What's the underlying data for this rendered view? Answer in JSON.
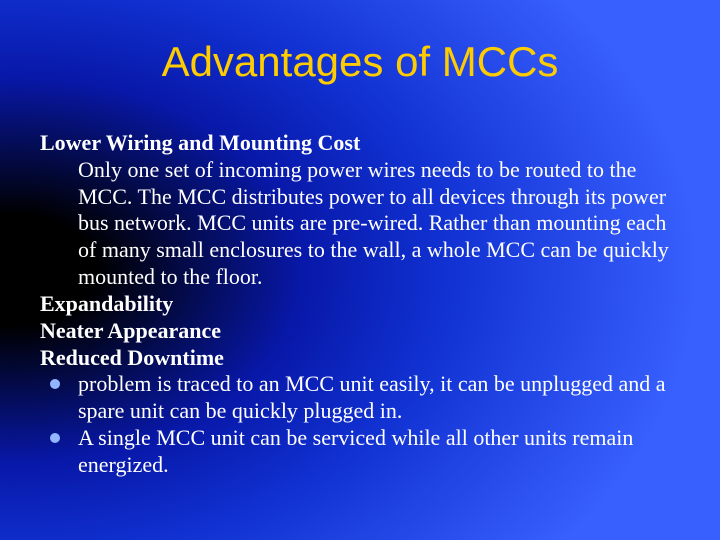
{
  "slide": {
    "background": {
      "gradient_center": "#000000",
      "gradient_mid": "#0818a8",
      "gradient_outer": "#3860ff"
    },
    "title": {
      "text": "Advantages of  MCCs",
      "color": "#ffcc00",
      "font_family": "Arial",
      "font_size_pt": 32
    },
    "body_font": {
      "family": "Times New Roman",
      "size_pt": 17,
      "color": "#ffffff"
    },
    "bullet_color": "#93b4ff",
    "sections": {
      "s1_head": "Lower Wiring and Mounting Cost",
      "s1_body": "Only one set of incoming power wires needs to be routed to the MCC. The MCC distributes power to all devices through its power bus network. MCC units are pre-wired. Rather than mounting each of many small enclosures to the wall, a whole MCC can be quickly mounted to the floor.",
      "s2_head": "Expandability",
      "s3_head": "Neater Appearance",
      "s4_head": "Reduced Downtime",
      "s4_b1": "problem is traced to an MCC unit easily, it can be unplugged and a spare unit can be quickly plugged in.",
      "s4_b2": "A single MCC unit can be serviced while all other units remain energized."
    }
  }
}
